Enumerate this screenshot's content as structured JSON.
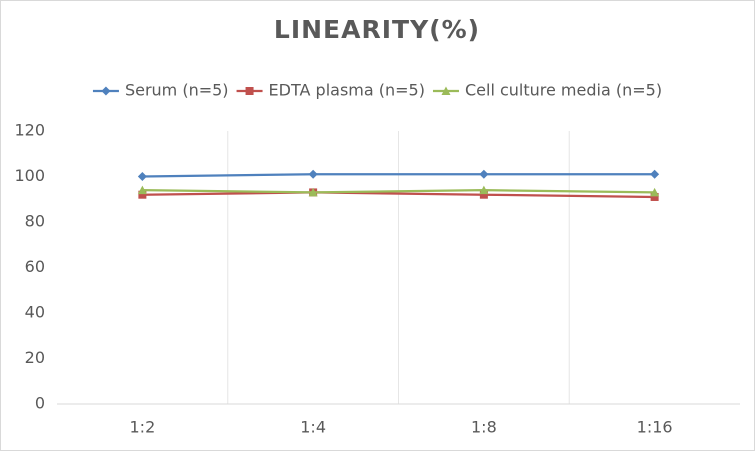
{
  "chart_data": {
    "type": "line",
    "title": "LINEARITY(%)",
    "categories": [
      "1:2",
      "1:4",
      "1:8",
      "1:16"
    ],
    "series": [
      {
        "name": "Serum (n=5)",
        "color": "#4f81bd",
        "marker": "diamond",
        "values": [
          100,
          101,
          101,
          101
        ]
      },
      {
        "name": "EDTA plasma (n=5)",
        "color": "#c0504d",
        "marker": "square",
        "values": [
          92,
          93,
          92,
          91
        ]
      },
      {
        "name": "Cell culture media (n=5)",
        "color": "#9bbb59",
        "marker": "triangle",
        "values": [
          94,
          93,
          94,
          93
        ]
      }
    ],
    "ylim": [
      0,
      120
    ],
    "yticks": [
      0,
      20,
      40,
      60,
      80,
      100,
      120
    ],
    "legend": "top"
  }
}
